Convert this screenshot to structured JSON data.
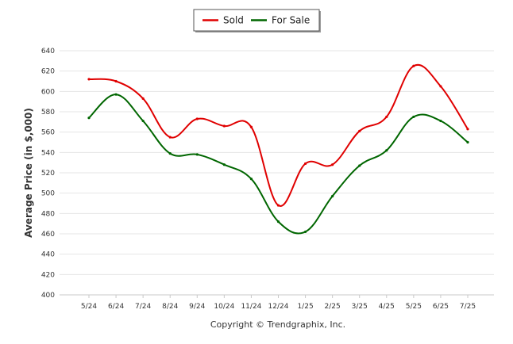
{
  "chart_data": {
    "type": "line",
    "categories": [
      "5/24",
      "6/24",
      "7/24",
      "8/24",
      "9/24",
      "10/24",
      "11/24",
      "12/24",
      "1/25",
      "2/25",
      "3/25",
      "4/25",
      "5/25",
      "6/25",
      "7/25"
    ],
    "series": [
      {
        "name": "Sold",
        "color": "#e00000",
        "values": [
          612,
          610,
          593,
          555,
          573,
          566,
          565,
          488,
          529,
          528,
          561,
          575,
          625,
          605,
          563
        ]
      },
      {
        "name": "For Sale",
        "color": "#006600",
        "values": [
          574,
          597,
          571,
          539,
          538,
          528,
          514,
          472,
          462,
          497,
          527,
          542,
          575,
          571,
          550
        ]
      }
    ],
    "ylabel": "Average Price (in $,000)",
    "xlabel": "",
    "ylim": [
      400,
      640
    ],
    "yticks": [
      400,
      420,
      440,
      460,
      480,
      500,
      520,
      540,
      560,
      580,
      600,
      620,
      640
    ],
    "grid": true,
    "legend_position": "top-center",
    "footer": "Copyright © Trendgraphix, Inc."
  }
}
